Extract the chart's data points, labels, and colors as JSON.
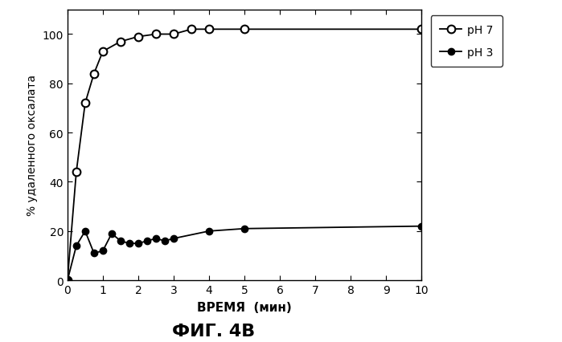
{
  "ph7_x": [
    0,
    0.25,
    0.5,
    0.75,
    1.0,
    1.5,
    2.0,
    2.5,
    3.0,
    3.5,
    4.0,
    5.0,
    10.0
  ],
  "ph7_y": [
    0,
    44,
    72,
    84,
    93,
    97,
    99,
    100,
    100,
    102,
    102,
    102,
    102
  ],
  "ph3_x": [
    0,
    0.25,
    0.5,
    0.75,
    1.0,
    1.25,
    1.5,
    1.75,
    2.0,
    2.25,
    2.5,
    2.75,
    3.0,
    4.0,
    5.0,
    10.0
  ],
  "ph3_y": [
    0,
    14,
    20,
    11,
    12,
    19,
    16,
    15,
    15,
    16,
    17,
    16,
    17,
    20,
    21,
    22
  ],
  "xlabel": "ВРЕМЯ  (мин)",
  "ylabel": "% удаленного оксалата",
  "title": "ФИГ. 4В",
  "xlim": [
    0,
    10
  ],
  "ylim": [
    0,
    110
  ],
  "xticks": [
    0,
    1,
    2,
    3,
    4,
    5,
    6,
    7,
    8,
    9,
    10
  ],
  "yticks": [
    0,
    20,
    40,
    60,
    80,
    100
  ],
  "legend_ph7": "pH 7",
  "legend_ph3": "pH 3",
  "color": "black",
  "background": "white"
}
